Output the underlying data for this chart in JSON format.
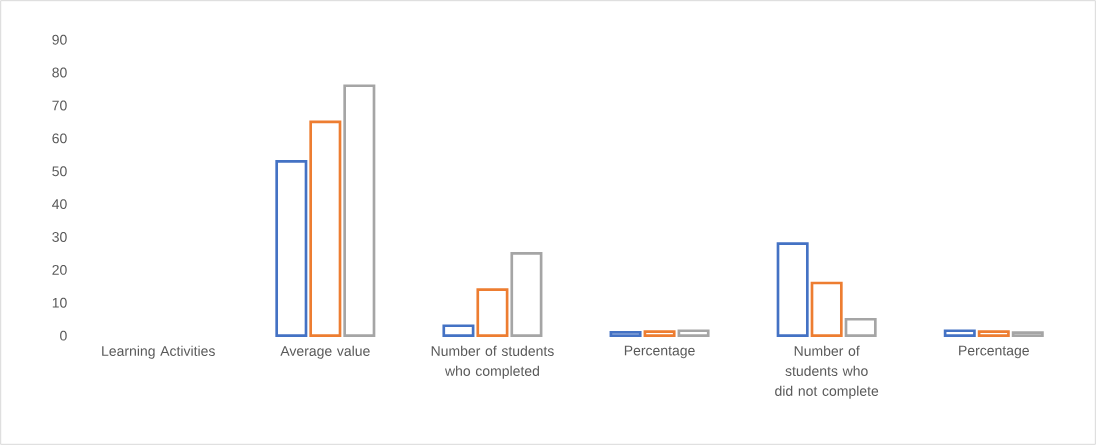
{
  "chart_data": {
    "type": "bar",
    "categories": [
      "Learning Activities",
      "Average value",
      "Number of students who completed",
      "Percentage",
      "Number of students who did not complete",
      "Percentage"
    ],
    "series": [
      {
        "color": "#4472c4",
        "values": [
          null,
          53,
          3,
          1,
          28,
          1.5
        ]
      },
      {
        "color": "#ed7d31",
        "values": [
          null,
          65,
          14,
          1.2,
          16,
          1.2
        ]
      },
      {
        "color": "#a5a5a5",
        "values": [
          null,
          76,
          25,
          1.5,
          5,
          0.9
        ]
      }
    ],
    "ylim": [
      0,
      90
    ],
    "yticks": [
      0,
      10,
      20,
      30,
      40,
      50,
      60,
      70,
      80,
      90
    ]
  }
}
